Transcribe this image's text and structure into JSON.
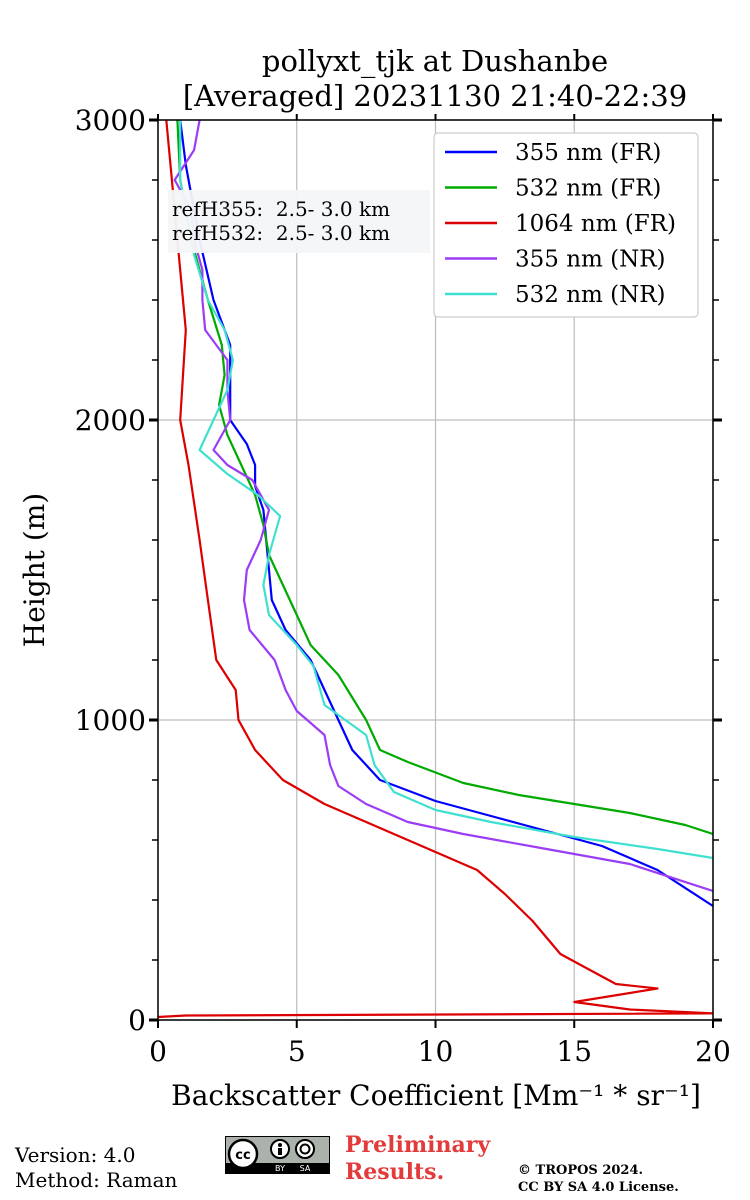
{
  "chart_data": {
    "type": "line",
    "title": "pollyxt_tjk at Dushanbe",
    "subtitle": "[Averaged] 20231130 21:40-22:39",
    "xlabel": "Backscatter Coefficient [Mm⁻¹ * sr⁻¹]",
    "ylabel": "Height (m)",
    "xlim": [
      0,
      20
    ],
    "ylim": [
      0,
      3000
    ],
    "xticks": [
      "0",
      "5",
      "10",
      "15",
      "20"
    ],
    "xtick_values": [
      0,
      5,
      10,
      15,
      20
    ],
    "yticks": [
      "0",
      "1000",
      "2000",
      "3000"
    ],
    "ytick_values": [
      0,
      1000,
      2000,
      3000
    ],
    "grid": true,
    "legend_position": "top-right",
    "annotations": [
      "refH355:  2.5- 3.0 km",
      "refH532:  2.5- 3.0 km"
    ],
    "series": [
      {
        "name": "355 nm (FR)",
        "color": "#0000ff",
        "points": [
          [
            0.8,
            3000
          ],
          [
            1.0,
            2850
          ],
          [
            1.5,
            2600
          ],
          [
            2.0,
            2400
          ],
          [
            2.6,
            2250
          ],
          [
            2.6,
            2100
          ],
          [
            2.6,
            2000
          ],
          [
            3.2,
            1920
          ],
          [
            3.5,
            1850
          ],
          [
            3.5,
            1780
          ],
          [
            3.8,
            1700
          ],
          [
            3.9,
            1600
          ],
          [
            4.0,
            1500
          ],
          [
            4.1,
            1400
          ],
          [
            4.6,
            1300
          ],
          [
            5.5,
            1200
          ],
          [
            6.0,
            1100
          ],
          [
            6.5,
            1000
          ],
          [
            7.0,
            900
          ],
          [
            8.0,
            800
          ],
          [
            10.0,
            730
          ],
          [
            12.0,
            680
          ],
          [
            14.0,
            630
          ],
          [
            16.0,
            580
          ],
          [
            18.0,
            500
          ],
          [
            20.0,
            380
          ]
        ]
      },
      {
        "name": "532 nm (FR)",
        "color": "#00aa00",
        "points": [
          [
            0.7,
            3000
          ],
          [
            0.8,
            2800
          ],
          [
            1.2,
            2600
          ],
          [
            1.8,
            2400
          ],
          [
            2.3,
            2250
          ],
          [
            2.4,
            2150
          ],
          [
            2.2,
            2050
          ],
          [
            2.5,
            1950
          ],
          [
            3.0,
            1850
          ],
          [
            3.5,
            1750
          ],
          [
            3.8,
            1650
          ],
          [
            4.0,
            1550
          ],
          [
            4.5,
            1450
          ],
          [
            5.0,
            1350
          ],
          [
            5.5,
            1250
          ],
          [
            6.5,
            1150
          ],
          [
            7.5,
            1000
          ],
          [
            8.0,
            900
          ],
          [
            9.0,
            860
          ],
          [
            11.0,
            790
          ],
          [
            13.0,
            750
          ],
          [
            15.0,
            720
          ],
          [
            17.0,
            690
          ],
          [
            19.0,
            650
          ],
          [
            20.0,
            620
          ]
        ]
      },
      {
        "name": "1064 nm (FR)",
        "color": "#dd0000",
        "points": [
          [
            0.3,
            3000
          ],
          [
            0.5,
            2800
          ],
          [
            0.7,
            2600
          ],
          [
            0.9,
            2400
          ],
          [
            1.0,
            2300
          ],
          [
            0.9,
            2150
          ],
          [
            0.8,
            2000
          ],
          [
            1.1,
            1850
          ],
          [
            1.5,
            1600
          ],
          [
            1.8,
            1400
          ],
          [
            2.1,
            1200
          ],
          [
            2.8,
            1100
          ],
          [
            2.9,
            1000
          ],
          [
            3.5,
            900
          ],
          [
            4.5,
            800
          ],
          [
            6.0,
            720
          ],
          [
            8.0,
            640
          ],
          [
            10.0,
            560
          ],
          [
            11.5,
            500
          ],
          [
            12.5,
            420
          ],
          [
            13.5,
            330
          ],
          [
            14.5,
            220
          ],
          [
            15.5,
            170
          ],
          [
            16.5,
            120
          ],
          [
            18.0,
            105
          ],
          [
            15.0,
            60
          ],
          [
            17.0,
            35
          ],
          [
            20.0,
            22
          ],
          [
            1.0,
            15
          ],
          [
            0.0,
            10
          ]
        ]
      },
      {
        "name": "355 nm (NR)",
        "color": "#9b3df5",
        "points": [
          [
            1.5,
            3000
          ],
          [
            1.3,
            2900
          ],
          [
            0.6,
            2800
          ],
          [
            1.2,
            2700
          ],
          [
            1.3,
            2600
          ],
          [
            1.6,
            2500
          ],
          [
            1.6,
            2400
          ],
          [
            1.7,
            2300
          ],
          [
            2.5,
            2200
          ],
          [
            2.5,
            2100
          ],
          [
            2.6,
            2000
          ],
          [
            2.0,
            1900
          ],
          [
            2.5,
            1850
          ],
          [
            3.4,
            1800
          ],
          [
            4.0,
            1700
          ],
          [
            3.7,
            1600
          ],
          [
            3.2,
            1500
          ],
          [
            3.1,
            1400
          ],
          [
            3.3,
            1300
          ],
          [
            4.2,
            1200
          ],
          [
            4.6,
            1100
          ],
          [
            5.0,
            1030
          ],
          [
            6.0,
            950
          ],
          [
            6.2,
            850
          ],
          [
            6.5,
            780
          ],
          [
            7.5,
            720
          ],
          [
            9.0,
            660
          ],
          [
            11.0,
            620
          ],
          [
            14.0,
            570
          ],
          [
            17.0,
            520
          ],
          [
            20.0,
            430
          ]
        ]
      },
      {
        "name": "532 nm (NR)",
        "color": "#40e0d0",
        "points": [
          [
            0.8,
            3000
          ],
          [
            0.8,
            2800
          ],
          [
            1.0,
            2700
          ],
          [
            1.3,
            2550
          ],
          [
            1.8,
            2400
          ],
          [
            2.4,
            2300
          ],
          [
            2.7,
            2200
          ],
          [
            2.5,
            2100
          ],
          [
            2.0,
            2000
          ],
          [
            1.5,
            1900
          ],
          [
            2.5,
            1820
          ],
          [
            3.6,
            1750
          ],
          [
            4.4,
            1680
          ],
          [
            4.0,
            1550
          ],
          [
            3.8,
            1450
          ],
          [
            4.0,
            1350
          ],
          [
            5.0,
            1250
          ],
          [
            5.6,
            1180
          ],
          [
            6.0,
            1050
          ],
          [
            7.5,
            950
          ],
          [
            7.8,
            850
          ],
          [
            8.5,
            760
          ],
          [
            10.0,
            700
          ],
          [
            12.0,
            660
          ],
          [
            15.0,
            610
          ],
          [
            18.0,
            570
          ],
          [
            20.0,
            540
          ]
        ]
      }
    ]
  },
  "footer": {
    "version": "Version: 4.0",
    "method": "Method: Raman",
    "preliminary_line1": "Preliminary",
    "preliminary_line2": "Results.",
    "copyright_line1": "© TROPOS 2024.",
    "copyright_line2": "CC BY SA 4.0 License.",
    "cc_badge": {
      "cc": "cc",
      "by": "BY",
      "sa": "SA"
    }
  }
}
